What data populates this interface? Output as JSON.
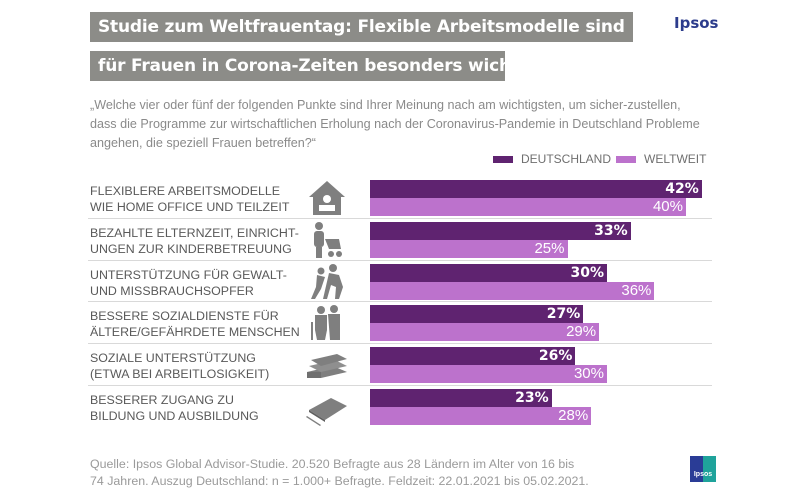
{
  "header": {
    "title_line1": "Studie zum Weltfrauentag: Flexible Arbeitsmodelle sind",
    "title_line2": "für Frauen in Corona-Zeiten besonders wichtig",
    "logo": "Ipsos"
  },
  "question": "„Welche vier oder fünf der folgenden Punkte sind Ihrer Meinung nach am wichtigsten, um sicher-zustellen, dass die Programme zur wirtschaftlichen Erholung nach der Coronavirus-Pandemie in Deutschland Probleme angehen, die speziell Frauen betreffen?“",
  "footer": {
    "source_line1": "Quelle: Ipsos Global Advisor-Studie.  20.520 Befragte aus 28 Ländern im Alter von 16 bis",
    "source_line2": "74 Jahren. Auszug Deutschland: n = 1.000+ Befragte. Feldzeit: 22.01.2021 bis 05.02.2021.",
    "logo_small": "Ipsos"
  },
  "colors": {
    "deutschland": "#5f2370",
    "weltweit": "#bc72cc",
    "title_band": "#8c8c88",
    "logo": "#2c3c8c"
  },
  "chart_data": {
    "type": "bar",
    "orientation": "horizontal",
    "title": "Studie zum Weltfrauentag: Flexible Arbeitsmodelle sind für Frauen in Corona-Zeiten besonders wichtig",
    "xlabel": "",
    "ylabel": "",
    "xlim": [
      0,
      42
    ],
    "legend": "top-right",
    "categories": [
      {
        "line1": "FLEXIBLERE ARBEITSMODELLE",
        "line2": "WIE HOME OFFICE UND TEILZEIT",
        "icon": "home-office-icon"
      },
      {
        "line1": "BEZAHLTE ELTERNZEIT, EINRICHT-",
        "line2": "UNGEN ZUR KINDERBETREUUNG",
        "icon": "parent-stroller-icon"
      },
      {
        "line1": "UNTERSTÜTZUNG FÜR GEWALT-",
        "line2": "UND MISSBRAUCHSOPFER",
        "icon": "violence-victim-icon"
      },
      {
        "line1": "BESSERE SOZIALDIENSTE FÜR",
        "line2": "ÄLTERE/GEFÄHRDETE MENSCHEN",
        "icon": "elderly-couple-icon"
      },
      {
        "line1": "SOZIALE UNTERSTÜTZUNG",
        "line2": "(ETWA BEI ARBEITLOSIGKEIT)",
        "icon": "money-stack-icon"
      },
      {
        "line1": "BESSERER ZUGANG ZU",
        "line2": "BILDUNG UND AUSBILDUNG",
        "icon": "book-pen-icon"
      }
    ],
    "series": [
      {
        "name": "DEUTSCHLAND",
        "values": [
          42,
          33,
          30,
          27,
          26,
          23
        ],
        "labels": [
          "42%",
          "33%",
          "30%",
          "27%",
          "26%",
          "23%"
        ]
      },
      {
        "name": "WELTWEIT",
        "values": [
          40,
          25,
          36,
          29,
          30,
          28
        ],
        "labels": [
          "40%",
          "25%",
          "36%",
          "29%",
          "30%",
          "28%"
        ]
      }
    ]
  }
}
